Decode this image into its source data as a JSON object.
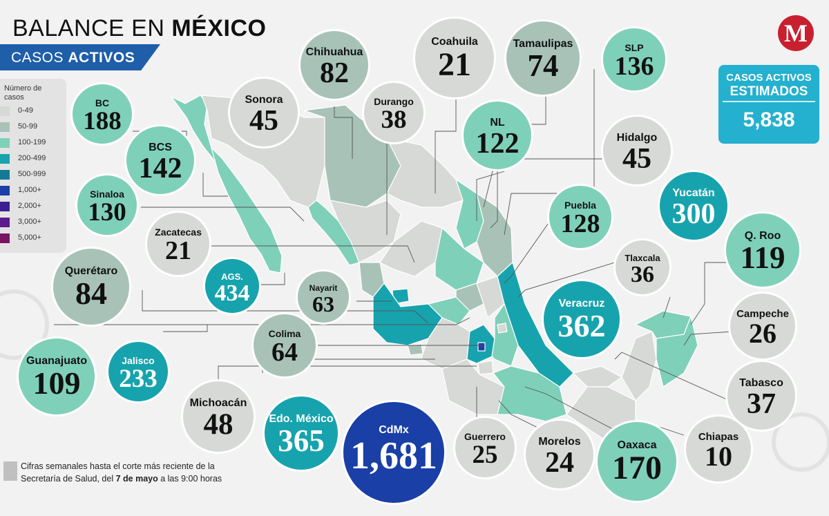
{
  "header": {
    "title_light": "BALANCE EN",
    "title_bold": "MÉXICO",
    "subtitle_light": "CASOS",
    "subtitle_bold": "ACTIVOS"
  },
  "logo": {
    "letter": "M",
    "color": "#c8202f"
  },
  "estimate": {
    "line1": "CASOS ACTIVOS",
    "line2": "ESTIMADOS",
    "value": "5,838",
    "color": "#24b0cf"
  },
  "legend": {
    "title": "Número de casos",
    "items": [
      {
        "label": "0-49",
        "color": "#d6d9d6"
      },
      {
        "label": "50-99",
        "color": "#a8c2b8"
      },
      {
        "label": "100-199",
        "color": "#7fd0b9"
      },
      {
        "label": "200-499",
        "color": "#17a3ad"
      },
      {
        "label": "500-999",
        "color": "#127a95"
      },
      {
        "label": "1,000+",
        "color": "#1a3fa6"
      },
      {
        "label": "2,000+",
        "color": "#3d1f95"
      },
      {
        "label": "3,000+",
        "color": "#5e1b8e"
      },
      {
        "label": "5,000+",
        "color": "#7a1462"
      }
    ]
  },
  "states": [
    {
      "name": "BC",
      "value": "188"
    },
    {
      "name": "BCS",
      "value": "142"
    },
    {
      "name": "Sinaloa",
      "value": "130"
    },
    {
      "name": "Zacatecas",
      "value": "21"
    },
    {
      "name": "Querétaro",
      "value": "84"
    },
    {
      "name": "AGS.",
      "value": "434"
    },
    {
      "name": "Nayarit",
      "value": "63"
    },
    {
      "name": "Sonora",
      "value": "45"
    },
    {
      "name": "Chihuahua",
      "value": "82"
    },
    {
      "name": "Durango",
      "value": "38"
    },
    {
      "name": "Coahuila",
      "value": "21"
    },
    {
      "name": "Tamaulipas",
      "value": "74"
    },
    {
      "name": "SLP",
      "value": "136"
    },
    {
      "name": "NL",
      "value": "122"
    },
    {
      "name": "Hidalgo",
      "value": "45"
    },
    {
      "name": "Puebla",
      "value": "128"
    },
    {
      "name": "Yucatán",
      "value": "300"
    },
    {
      "name": "Tlaxcala",
      "value": "36"
    },
    {
      "name": "Q. Roo",
      "value": "119"
    },
    {
      "name": "Veracruz",
      "value": "362"
    },
    {
      "name": "Campeche",
      "value": "26"
    },
    {
      "name": "Colima",
      "value": "64"
    },
    {
      "name": "Guanajuato",
      "value": "109"
    },
    {
      "name": "Jalisco",
      "value": "233"
    },
    {
      "name": "Michoacán",
      "value": "48"
    },
    {
      "name": "Edo. México",
      "value": "365"
    },
    {
      "name": "CdMx",
      "value": "1,681"
    },
    {
      "name": "Guerrero",
      "value": "25"
    },
    {
      "name": "Morelos",
      "value": "24"
    },
    {
      "name": "Oaxaca",
      "value": "170"
    },
    {
      "name": "Tabasco",
      "value": "37"
    },
    {
      "name": "Chiapas",
      "value": "10"
    }
  ],
  "footnote": {
    "line1": "Cifras semanales hasta el corte más reciente de la",
    "line2_pre": "Secretaría de Salud, del ",
    "line2_bold": "7 de mayo",
    "line2_post": " a las 9:00 horas"
  }
}
